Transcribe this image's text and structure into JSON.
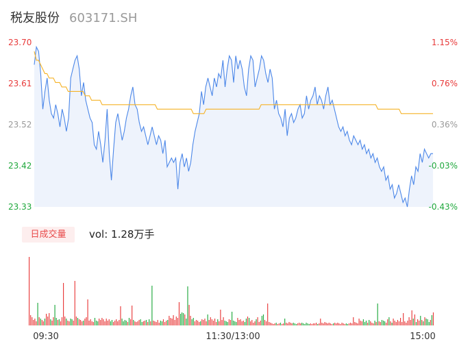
{
  "stock": {
    "name": "税友股份",
    "code": "603171.SH"
  },
  "colors": {
    "up": "#e83a3a",
    "down": "#1fa83c",
    "neutral": "#999999",
    "price_line": "#4a86e8",
    "avg_line": "#f5b225",
    "area_fill": "#eef3fc"
  },
  "volume_panel": {
    "tag": "日成交量",
    "summary": "vol: 1.28万手"
  },
  "chart_data": [
    {
      "type": "line",
      "ylim": [
        23.33,
        23.7
      ],
      "y_ticks": [
        "23.70",
        "23.61",
        "23.52",
        "23.42",
        "23.33"
      ],
      "pct_ticks": [
        "1.15%",
        "0.76%",
        "0.36%",
        "-0.03%",
        "-0.43%"
      ],
      "pct_colors": [
        "up",
        "up",
        "neutral",
        "down",
        "down"
      ],
      "y_tick_colors": [
        "up",
        "up",
        "neutral",
        "down",
        "down"
      ],
      "x_ticks": [
        "09:30",
        "11:30/13:00",
        "15:00"
      ],
      "series": [
        {
          "values": [
            23.65,
            23.69,
            23.68,
            23.63,
            23.55,
            23.59,
            23.62,
            23.57,
            23.54,
            23.53,
            23.56,
            23.54,
            23.51,
            23.55,
            23.53,
            23.5,
            23.53,
            23.62,
            23.64,
            23.66,
            23.67,
            23.64,
            23.58,
            23.61,
            23.57,
            23.55,
            23.53,
            23.52,
            23.47,
            23.46,
            23.5,
            23.47,
            23.43,
            23.48,
            23.55,
            23.45,
            23.39,
            23.46,
            23.52,
            23.54,
            23.51,
            23.48,
            23.5,
            23.53,
            23.55,
            23.58,
            23.6,
            23.56,
            23.55,
            23.52,
            23.5,
            23.51,
            23.49,
            23.47,
            23.49,
            23.51,
            23.49,
            23.47,
            23.49,
            23.48,
            23.45,
            23.48,
            23.42,
            23.43,
            23.44,
            23.43,
            23.44,
            23.37,
            23.43,
            23.45,
            23.42,
            23.44,
            23.41,
            23.43,
            23.47,
            23.5,
            23.52,
            23.54,
            23.59,
            23.56,
            23.6,
            23.62,
            23.6,
            23.58,
            23.62,
            23.6,
            23.63,
            23.62,
            23.66,
            23.6,
            23.64,
            23.67,
            23.66,
            23.61,
            23.67,
            23.64,
            23.66,
            23.64,
            23.6,
            23.58,
            23.64,
            23.67,
            23.66,
            23.6,
            23.62,
            23.64,
            23.67,
            23.66,
            23.63,
            23.61,
            23.64,
            23.62,
            23.55,
            23.57,
            23.54,
            23.53,
            23.51,
            23.55,
            23.49,
            23.53,
            23.54,
            23.52,
            23.53,
            23.55,
            23.56,
            23.53,
            23.54,
            23.58,
            23.55,
            23.57,
            23.58,
            23.6,
            23.56,
            23.58,
            23.57,
            23.55,
            23.58,
            23.6,
            23.56,
            23.57,
            23.55,
            23.53,
            23.51,
            23.5,
            23.51,
            23.49,
            23.5,
            23.48,
            23.47,
            23.49,
            23.48,
            23.47,
            23.48,
            23.46,
            23.47,
            23.45,
            23.46,
            23.44,
            23.45,
            23.43,
            23.44,
            23.42,
            23.41,
            23.42,
            23.39,
            23.4,
            23.37,
            23.38,
            23.35,
            23.36,
            23.38,
            23.36,
            23.34,
            23.35,
            23.33,
            23.37,
            23.4,
            23.38,
            23.42,
            23.41,
            23.45,
            23.43,
            23.46,
            23.45,
            23.44,
            23.45,
            23.45
          ]
        },
        {
          "values": [
            23.68,
            23.66,
            23.66,
            23.65,
            23.64,
            23.63,
            23.63,
            23.62,
            23.62,
            23.62,
            23.61,
            23.61,
            23.61,
            23.6,
            23.6,
            23.6,
            23.59,
            23.59,
            23.59,
            23.59,
            23.59,
            23.59,
            23.59,
            23.59,
            23.58,
            23.58,
            23.58,
            23.57,
            23.57,
            23.57,
            23.57,
            23.57,
            23.56,
            23.56,
            23.56,
            23.56,
            23.56,
            23.56,
            23.56,
            23.56,
            23.56,
            23.56,
            23.56,
            23.56,
            23.56,
            23.56,
            23.56,
            23.56,
            23.56,
            23.56,
            23.56,
            23.56,
            23.56,
            23.56,
            23.56,
            23.56,
            23.56,
            23.56,
            23.55,
            23.55,
            23.55,
            23.55,
            23.55,
            23.55,
            23.55,
            23.55,
            23.55,
            23.55,
            23.55,
            23.55,
            23.55,
            23.55,
            23.55,
            23.55,
            23.55,
            23.54,
            23.54,
            23.54,
            23.54,
            23.54,
            23.54,
            23.55,
            23.55,
            23.55,
            23.55,
            23.55,
            23.55,
            23.55,
            23.55,
            23.55,
            23.55,
            23.55,
            23.55,
            23.55,
            23.55,
            23.55,
            23.55,
            23.55,
            23.55,
            23.55,
            23.55,
            23.55,
            23.55,
            23.55,
            23.55,
            23.55,
            23.55,
            23.56,
            23.56,
            23.56,
            23.56,
            23.56,
            23.56,
            23.56,
            23.56,
            23.56,
            23.56,
            23.56,
            23.56,
            23.56,
            23.56,
            23.56,
            23.56,
            23.56,
            23.56,
            23.56,
            23.56,
            23.56,
            23.56,
            23.56,
            23.56,
            23.56,
            23.56,
            23.56,
            23.56,
            23.56,
            23.56,
            23.56,
            23.56,
            23.56,
            23.56,
            23.56,
            23.56,
            23.56,
            23.56,
            23.56,
            23.56,
            23.56,
            23.56,
            23.56,
            23.56,
            23.56,
            23.56,
            23.56,
            23.56,
            23.56,
            23.56,
            23.56,
            23.56,
            23.56,
            23.56,
            23.56,
            23.55,
            23.55,
            23.55,
            23.55,
            23.55,
            23.55,
            23.55,
            23.55,
            23.55,
            23.55,
            23.55,
            23.54,
            23.54,
            23.54,
            23.54,
            23.54,
            23.54,
            23.54,
            23.54,
            23.54,
            23.54,
            23.54,
            23.54,
            23.54,
            23.54,
            23.54,
            23.54
          ]
        }
      ]
    },
    {
      "type": "bar",
      "values": [
        100,
        15,
        12,
        8,
        10,
        6,
        33,
        12,
        10,
        8,
        6,
        10,
        17,
        13,
        18,
        9,
        7,
        12,
        30,
        11,
        8,
        9,
        6,
        12,
        62,
        13,
        10,
        7,
        6,
        10,
        9,
        7,
        65,
        13,
        11,
        9,
        8,
        6,
        7,
        10,
        12,
        38,
        7,
        9,
        6,
        5,
        11,
        7,
        6,
        10,
        8,
        11,
        9,
        6,
        10,
        7,
        9,
        6,
        8,
        5,
        7,
        9,
        6,
        8,
        28,
        10,
        6,
        8,
        7,
        5,
        11,
        9,
        29,
        8,
        6,
        5,
        6,
        8,
        9,
        5,
        6,
        7,
        8,
        5,
        9,
        6,
        58,
        7,
        6,
        5,
        8,
        4,
        7,
        6,
        9,
        5,
        7,
        8,
        14,
        11,
        10,
        15,
        8,
        13,
        11,
        34,
        17,
        19,
        18,
        16,
        10,
        57,
        30,
        14,
        9,
        11,
        6,
        8,
        7,
        5,
        6,
        9,
        8,
        10,
        6,
        16,
        8,
        12,
        9,
        7,
        10,
        5,
        9,
        6,
        23,
        8,
        12,
        7,
        6,
        5,
        9,
        8,
        20,
        7,
        6,
        5,
        11,
        8,
        9,
        6,
        7,
        5,
        10,
        13,
        11,
        6,
        8,
        4,
        6,
        9,
        12,
        5,
        7,
        14,
        16,
        8,
        6,
        32,
        5,
        4,
        3,
        2,
        3,
        4,
        2,
        3,
        4,
        2,
        3,
        10,
        4,
        3,
        5,
        4,
        3,
        4,
        3,
        2,
        3,
        4,
        3,
        4,
        3,
        2,
        4,
        3,
        2,
        3,
        2,
        3,
        3,
        4,
        2,
        3,
        10,
        4,
        3,
        5,
        4,
        3,
        4,
        3,
        2,
        3,
        4,
        3,
        4,
        3,
        2,
        4,
        3,
        2,
        3,
        2,
        3,
        4,
        3,
        12,
        5,
        4,
        3,
        10,
        7,
        6,
        9,
        5,
        7,
        4,
        8,
        6,
        4,
        3,
        7,
        5,
        32,
        6,
        5,
        8,
        7,
        6,
        4,
        9,
        12,
        6,
        4,
        10,
        7,
        5,
        8,
        6,
        11,
        5,
        18,
        6,
        4,
        7,
        12,
        8,
        22,
        10,
        16,
        5,
        9,
        7,
        14,
        8,
        6,
        12,
        10,
        9,
        5,
        8,
        15,
        19
      ],
      "colors": "up/down per bar"
    }
  ]
}
